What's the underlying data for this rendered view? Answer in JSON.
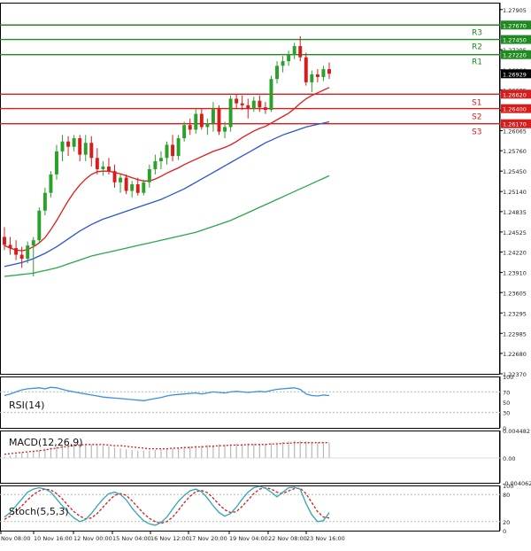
{
  "colors": {
    "background": "#ffffff",
    "frame": "#000000",
    "bull_candle": "#2aa12a",
    "bear_candle": "#d81b1b",
    "sma_fast": "#e01a1a",
    "sma_mid": "#2f54d6",
    "sma_slow": "#29a84a",
    "resistance": "#1f8a1f",
    "support": "#d81b1b",
    "rsi": "#3d8fe0",
    "macd_hist": "#b8b8b8",
    "macd_signal": "#d81b1b",
    "stoch_main": "#2aa6b5",
    "stoch_signal": "#d81b1b",
    "current_price_box": "#000000"
  },
  "chart_data": [
    {
      "type": "candlestick",
      "name": "main-price-chart",
      "title": "",
      "ylim": [
        1.2237,
        1.2801
      ],
      "y_ticks": [
        "1.27905",
        "1.27295",
        "1.26990",
        "1.26685",
        "1.26375",
        "1.26065",
        "1.25760",
        "1.25450",
        "1.25140",
        "1.24835",
        "1.24525",
        "1.24220",
        "1.23910",
        "1.23605",
        "1.23295",
        "1.22985",
        "1.22680",
        "1.22370"
      ],
      "current_price": 1.26929,
      "current_price_label": "1.26929",
      "levels": [
        {
          "name": "R3",
          "value": 1.2767,
          "label": "1.27670",
          "kind": "resistance"
        },
        {
          "name": "R2",
          "value": 1.2745,
          "label": "1.27450",
          "kind": "resistance"
        },
        {
          "name": "R1",
          "value": 1.2722,
          "label": "1.27220",
          "kind": "resistance"
        },
        {
          "name": "S1",
          "value": 1.2662,
          "label": "1.26620",
          "kind": "support"
        },
        {
          "name": "S2",
          "value": 1.264,
          "label": "1.26400",
          "kind": "support"
        },
        {
          "name": "S3",
          "value": 1.2617,
          "label": "1.26170",
          "kind": "support"
        }
      ],
      "candles": [
        [
          1.2445,
          1.246,
          1.2425,
          1.2433
        ],
        [
          1.2433,
          1.2445,
          1.2418,
          1.2428
        ],
        [
          1.2428,
          1.244,
          1.241,
          1.2418
        ],
        [
          1.2418,
          1.243,
          1.2398,
          1.2412
        ],
        [
          1.2412,
          1.2438,
          1.2405,
          1.2432
        ],
        [
          1.2432,
          1.2445,
          1.2385,
          1.244
        ],
        [
          1.244,
          1.249,
          1.2435,
          1.2485
        ],
        [
          1.2485,
          1.252,
          1.2478,
          1.2512
        ],
        [
          1.2512,
          1.2545,
          1.2505,
          1.254
        ],
        [
          1.254,
          1.2585,
          1.2532,
          1.2575
        ],
        [
          1.2575,
          1.26,
          1.256,
          1.259
        ],
        [
          1.259,
          1.2598,
          1.2568,
          1.2582
        ],
        [
          1.2582,
          1.26,
          1.2575,
          1.2595
        ],
        [
          1.2595,
          1.26,
          1.256,
          1.257
        ],
        [
          1.257,
          1.26,
          1.256,
          1.2588
        ],
        [
          1.2588,
          1.2598,
          1.2552,
          1.2565
        ],
        [
          1.2565,
          1.258,
          1.254,
          1.2548
        ],
        [
          1.2548,
          1.256,
          1.2538,
          1.2552
        ],
        [
          1.2552,
          1.2565,
          1.254,
          1.2545
        ],
        [
          1.2545,
          1.2555,
          1.252,
          1.2528
        ],
        [
          1.2528,
          1.254,
          1.2512,
          1.2535
        ],
        [
          1.2535,
          1.254,
          1.251,
          1.2515
        ],
        [
          1.2515,
          1.253,
          1.2505,
          1.2525
        ],
        [
          1.2525,
          1.2535,
          1.2508,
          1.2512
        ],
        [
          1.2512,
          1.2532,
          1.2508,
          1.2528
        ],
        [
          1.2528,
          1.2555,
          1.252,
          1.2548
        ],
        [
          1.2548,
          1.257,
          1.254,
          1.256
        ],
        [
          1.256,
          1.2575,
          1.2548,
          1.2565
        ],
        [
          1.2565,
          1.259,
          1.2555,
          1.2585
        ],
        [
          1.2585,
          1.26,
          1.256,
          1.2568
        ],
        [
          1.2568,
          1.26,
          1.2562,
          1.2595
        ],
        [
          1.2595,
          1.262,
          1.259,
          1.2615
        ],
        [
          1.2615,
          1.2625,
          1.26,
          1.2608
        ],
        [
          1.2608,
          1.264,
          1.2602,
          1.2632
        ],
        [
          1.2632,
          1.264,
          1.2608,
          1.2612
        ],
        [
          1.2612,
          1.2625,
          1.26,
          1.2618
        ],
        [
          1.2618,
          1.265,
          1.2605,
          1.264
        ],
        [
          1.264,
          1.2645,
          1.26,
          1.2605
        ],
        [
          1.2605,
          1.262,
          1.2595,
          1.2612
        ],
        [
          1.2612,
          1.266,
          1.2605,
          1.2655
        ],
        [
          1.2655,
          1.2662,
          1.264,
          1.2648
        ],
        [
          1.2648,
          1.266,
          1.2638,
          1.2645
        ],
        [
          1.2645,
          1.2655,
          1.2625,
          1.264
        ],
        [
          1.264,
          1.2658,
          1.2635,
          1.2652
        ],
        [
          1.2652,
          1.266,
          1.2635,
          1.2642
        ],
        [
          1.2642,
          1.265,
          1.2632,
          1.2638
        ],
        [
          1.2638,
          1.269,
          1.2635,
          1.2685
        ],
        [
          1.2685,
          1.2712,
          1.2678,
          1.2705
        ],
        [
          1.2705,
          1.272,
          1.2695,
          1.2712
        ],
        [
          1.2712,
          1.2728,
          1.2705,
          1.2722
        ],
        [
          1.2722,
          1.274,
          1.2715,
          1.2735
        ],
        [
          1.2735,
          1.275,
          1.2712,
          1.2718
        ],
        [
          1.2718,
          1.2725,
          1.2675,
          1.268
        ],
        [
          1.268,
          1.2698,
          1.2665,
          1.2692
        ],
        [
          1.2692,
          1.27,
          1.268,
          1.2688
        ],
        [
          1.2688,
          1.2705,
          1.2682,
          1.27
        ],
        [
          1.27,
          1.271,
          1.2685,
          1.2693
        ]
      ],
      "sma_fast": [
        1.2432,
        1.2428,
        1.2425,
        1.2424,
        1.2426,
        1.243,
        1.2436,
        1.2444,
        1.2456,
        1.247,
        1.2485,
        1.25,
        1.2513,
        1.2524,
        1.2533,
        1.254,
        1.2544,
        1.2545,
        1.2545,
        1.2543,
        1.2541,
        1.2538,
        1.2535,
        1.2532,
        1.253,
        1.253,
        1.2533,
        1.2537,
        1.2542,
        1.2546,
        1.255,
        1.2555,
        1.2559,
        1.2563,
        1.2567,
        1.2571,
        1.2575,
        1.2578,
        1.2581,
        1.2585,
        1.259,
        1.2596,
        1.2601,
        1.2606,
        1.261,
        1.2613,
        1.2618,
        1.2623,
        1.2628,
        1.2633,
        1.264,
        1.2648,
        1.2655,
        1.266,
        1.2664,
        1.2668,
        1.2672
      ],
      "sma_mid": [
        1.24,
        1.2402,
        1.2404,
        1.2406,
        1.2409,
        1.2412,
        1.2416,
        1.242,
        1.2425,
        1.243,
        1.2436,
        1.2442,
        1.2448,
        1.2454,
        1.2459,
        1.2464,
        1.2468,
        1.2472,
        1.2475,
        1.2478,
        1.2481,
        1.2484,
        1.2487,
        1.249,
        1.2493,
        1.2496,
        1.2499,
        1.2502,
        1.2506,
        1.251,
        1.2514,
        1.2518,
        1.2523,
        1.2528,
        1.2533,
        1.2538,
        1.2543,
        1.2548,
        1.2553,
        1.2558,
        1.2563,
        1.2568,
        1.2573,
        1.2578,
        1.2583,
        1.2588,
        1.2592,
        1.2596,
        1.26,
        1.2603,
        1.2606,
        1.2609,
        1.2612,
        1.2614,
        1.2616,
        1.2618,
        1.262
      ],
      "sma_slow": [
        1.2385,
        1.2386,
        1.2387,
        1.2388,
        1.2389,
        1.239,
        1.2392,
        1.2394,
        1.2396,
        1.2398,
        1.2401,
        1.2404,
        1.2407,
        1.241,
        1.2413,
        1.2416,
        1.2418,
        1.242,
        1.2422,
        1.2424,
        1.2426,
        1.2428,
        1.243,
        1.2432,
        1.2434,
        1.2436,
        1.2438,
        1.244,
        1.2442,
        1.2444,
        1.2446,
        1.2448,
        1.245,
        1.2452,
        1.2455,
        1.2458,
        1.2461,
        1.2464,
        1.2467,
        1.247,
        1.2474,
        1.2478,
        1.2482,
        1.2486,
        1.249,
        1.2494,
        1.2498,
        1.2502,
        1.2506,
        1.251,
        1.2514,
        1.2518,
        1.2522,
        1.2526,
        1.253,
        1.2534,
        1.2538
      ],
      "x_tick_labels": [
        "Nov 08:00",
        "10 Nov 16:00",
        "12 Nov 00:00",
        "15 Nov 04:00",
        "16 Nov 12:00",
        "17 Nov 20:00",
        "19 Nov 04:00",
        "22 Nov 08:00",
        "23 Nov 16:00"
      ]
    },
    {
      "type": "line",
      "name": "rsi-panel",
      "title": "RSI(14)",
      "ylim": [
        0,
        100
      ],
      "y_ticks": [
        "100",
        "70",
        "50",
        "30",
        "0"
      ],
      "guide_levels": [
        70,
        30
      ],
      "values": [
        63,
        66,
        70,
        74,
        76,
        77,
        78,
        76,
        79,
        78,
        75,
        72,
        70,
        68,
        66,
        64,
        62,
        60,
        59,
        58,
        57,
        56,
        55,
        54,
        53,
        55,
        57,
        59,
        62,
        64,
        65,
        66,
        67,
        68,
        66,
        68,
        70,
        69,
        68,
        70,
        71,
        70,
        69,
        70,
        71,
        70,
        73,
        75,
        76,
        77,
        78,
        75,
        66,
        63,
        62,
        64,
        63
      ]
    },
    {
      "type": "bar",
      "name": "macd-panel",
      "title": "MACD(12,26,9)",
      "ylim": [
        -0.004062,
        0.004482
      ],
      "y_ticks": [
        "0.004482",
        "0.00",
        "-0.004062"
      ],
      "histogram": [
        0.0002,
        0.0004,
        0.0006,
        0.0008,
        0.0009,
        0.0011,
        0.0013,
        0.0015,
        0.0017,
        0.0019,
        0.0021,
        0.0022,
        0.0023,
        0.0023,
        0.0023,
        0.0022,
        0.0021,
        0.002,
        0.0019,
        0.0017,
        0.0016,
        0.0014,
        0.0013,
        0.0012,
        0.0012,
        0.0012,
        0.0013,
        0.0014,
        0.0015,
        0.0016,
        0.0017,
        0.0018,
        0.0019,
        0.002,
        0.002,
        0.0021,
        0.0021,
        0.0022,
        0.0022,
        0.0022,
        0.0023,
        0.0023,
        0.0023,
        0.0023,
        0.0023,
        0.0023,
        0.0024,
        0.0025,
        0.0026,
        0.0027,
        0.0028,
        0.0028,
        0.0027,
        0.0026,
        0.0025,
        0.0024,
        0.0024
      ],
      "signal": [
        0.0006,
        0.0007,
        0.0008,
        0.0009,
        0.001,
        0.0011,
        0.0012,
        0.0013,
        0.0015,
        0.0016,
        0.0018,
        0.0019,
        0.002,
        0.0021,
        0.0022,
        0.0022,
        0.0022,
        0.0022,
        0.0021,
        0.002,
        0.002,
        0.0019,
        0.0018,
        0.0017,
        0.0016,
        0.0015,
        0.0015,
        0.0015,
        0.0015,
        0.0016,
        0.0016,
        0.0017,
        0.0017,
        0.0018,
        0.0018,
        0.0019,
        0.0019,
        0.002,
        0.002,
        0.0021,
        0.0021,
        0.0021,
        0.0022,
        0.0022,
        0.0022,
        0.0022,
        0.0023,
        0.0023,
        0.0024,
        0.0024,
        0.0025,
        0.0025,
        0.0025,
        0.0025,
        0.0025,
        0.0025,
        0.0025
      ]
    },
    {
      "type": "line",
      "name": "stochastic-panel",
      "title": "Stoch(5,5,3)",
      "ylim": [
        0,
        100
      ],
      "y_ticks": [
        "100",
        "80",
        "20",
        "0"
      ],
      "guide_levels": [
        80,
        20
      ],
      "main": [
        30,
        40,
        55,
        70,
        85,
        92,
        95,
        92,
        85,
        70,
        55,
        40,
        28,
        20,
        25,
        38,
        55,
        70,
        82,
        85,
        80,
        68,
        50,
        35,
        22,
        15,
        12,
        18,
        30,
        48,
        65,
        78,
        88,
        92,
        86,
        72,
        55,
        40,
        32,
        38,
        52,
        70,
        85,
        95,
        98,
        94,
        85,
        75,
        85,
        95,
        96,
        92,
        60,
        35,
        20,
        22,
        40
      ],
      "signal": [
        25,
        32,
        42,
        55,
        68,
        80,
        88,
        92,
        90,
        82,
        70,
        55,
        42,
        32,
        26,
        28,
        38,
        52,
        66,
        78,
        82,
        78,
        66,
        52,
        38,
        27,
        20,
        16,
        20,
        30,
        45,
        62,
        76,
        86,
        89,
        84,
        72,
        58,
        46,
        40,
        42,
        54,
        68,
        82,
        92,
        95,
        92,
        85,
        82,
        88,
        93,
        94,
        82,
        62,
        42,
        30,
        28
      ]
    }
  ]
}
